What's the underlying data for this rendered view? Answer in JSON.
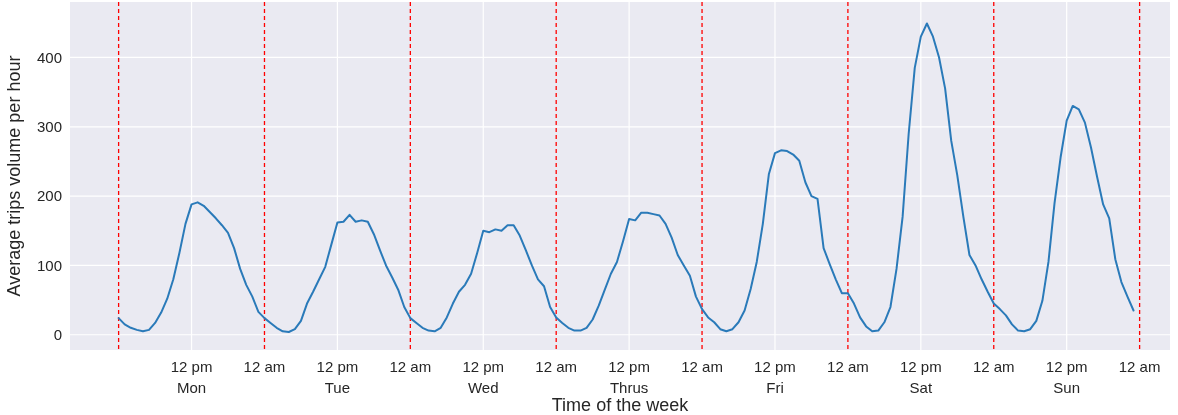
{
  "chart_data": {
    "type": "line",
    "xlabel": "Time of the week",
    "ylabel": "Average trips volume per hour",
    "categories": [
      null,
      null,
      null,
      null,
      null,
      null,
      null,
      null,
      null,
      null,
      null,
      null,
      "12 pm\nMon",
      null,
      null,
      null,
      null,
      null,
      null,
      null,
      null,
      null,
      null,
      null,
      "12 am",
      null,
      null,
      null,
      null,
      null,
      null,
      null,
      null,
      null,
      null,
      null,
      "12 pm\nTue",
      null,
      null,
      null,
      null,
      null,
      null,
      null,
      null,
      null,
      null,
      null,
      "12 am",
      null,
      null,
      null,
      null,
      null,
      null,
      null,
      null,
      null,
      null,
      null,
      "12 pm\nWed",
      null,
      null,
      null,
      null,
      null,
      null,
      null,
      null,
      null,
      null,
      null,
      "12 am",
      null,
      null,
      null,
      null,
      null,
      null,
      null,
      null,
      null,
      null,
      null,
      "12 pm\nThrus",
      null,
      null,
      null,
      null,
      null,
      null,
      null,
      null,
      null,
      null,
      null,
      "12 am",
      null,
      null,
      null,
      null,
      null,
      null,
      null,
      null,
      null,
      null,
      null,
      "12 pm\nFri",
      null,
      null,
      null,
      null,
      null,
      null,
      null,
      null,
      null,
      null,
      null,
      "12 am",
      null,
      null,
      null,
      null,
      null,
      null,
      null,
      null,
      null,
      null,
      null,
      "12 pm\nSat",
      null,
      null,
      null,
      null,
      null,
      null,
      null,
      null,
      null,
      null,
      null,
      "12 am",
      null,
      null,
      null,
      null,
      null,
      null,
      null,
      null,
      null,
      null,
      null,
      "12 pm\nSun",
      null,
      null,
      null,
      null,
      null,
      null,
      null,
      null,
      null,
      null,
      null,
      "12 am"
    ],
    "series": [
      {
        "color": "#2a7ab9",
        "values": [
          24,
          15,
          10,
          7,
          5,
          7,
          17,
          32,
          52,
          80,
          118,
          160,
          188,
          191,
          186,
          177,
          168,
          158,
          147,
          125,
          95,
          72,
          55,
          33,
          24,
          17,
          10,
          5,
          4,
          8,
          20,
          45,
          62,
          80,
          98,
          130,
          162,
          163,
          173,
          163,
          165,
          163,
          145,
          122,
          100,
          83,
          65,
          40,
          24,
          17,
          10,
          6,
          5,
          10,
          25,
          45,
          62,
          72,
          88,
          118,
          150,
          148,
          152,
          150,
          158,
          158,
          143,
          122,
          100,
          80,
          70,
          40,
          25,
          17,
          10,
          6,
          6,
          10,
          22,
          42,
          65,
          88,
          105,
          135,
          167,
          165,
          176,
          176,
          174,
          172,
          160,
          140,
          115,
          100,
          85,
          55,
          37,
          25,
          18,
          8,
          5,
          8,
          18,
          35,
          66,
          105,
          160,
          232,
          262,
          266,
          265,
          260,
          251,
          220,
          200,
          196,
          125,
          102,
          80,
          60,
          60,
          45,
          25,
          12,
          5,
          6,
          18,
          40,
          95,
          170,
          290,
          385,
          430,
          449,
          430,
          400,
          355,
          280,
          230,
          170,
          115,
          100,
          80,
          62,
          45,
          37,
          28,
          15,
          6,
          5,
          8,
          20,
          49,
          105,
          190,
          256,
          309,
          330,
          325,
          306,
          270,
          228,
          188,
          168,
          109,
          76,
          55,
          35,
          null
        ]
      }
    ],
    "ylim": [
      -22,
      480
    ],
    "yticks": [
      0,
      100,
      200,
      300,
      400
    ],
    "grid": true
  }
}
